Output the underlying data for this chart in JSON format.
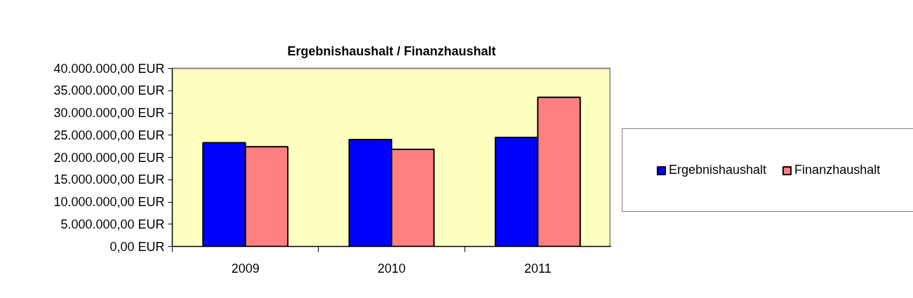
{
  "chart_data": {
    "type": "bar",
    "title": "Ergebnishaushalt / Finanzhaushalt",
    "categories": [
      "2009",
      "2010",
      "2011"
    ],
    "series": [
      {
        "name": "Ergebnishaushalt",
        "color": "#0000ff",
        "values": [
          23300000,
          24000000,
          24500000
        ]
      },
      {
        "name": "Finanzhaushalt",
        "color": "#ff8080",
        "values": [
          22400000,
          21800000,
          33500000
        ]
      }
    ],
    "ylim": [
      0,
      40000000
    ],
    "yticks": [
      {
        "value": 0,
        "label": "0,00 EUR"
      },
      {
        "value": 5000000,
        "label": "5.000.000,00 EUR"
      },
      {
        "value": 10000000,
        "label": "10.000.000,00 EUR"
      },
      {
        "value": 15000000,
        "label": "15.000.000,00 EUR"
      },
      {
        "value": 20000000,
        "label": "20.000.000,00 EUR"
      },
      {
        "value": 25000000,
        "label": "25.000.000,00 EUR"
      },
      {
        "value": 30000000,
        "label": "30.000.000,00 EUR"
      },
      {
        "value": 35000000,
        "label": "35.000.000,00 EUR"
      },
      {
        "value": 40000000,
        "label": "40.000.000,00 EUR"
      }
    ],
    "grid": false,
    "legend": "right"
  }
}
